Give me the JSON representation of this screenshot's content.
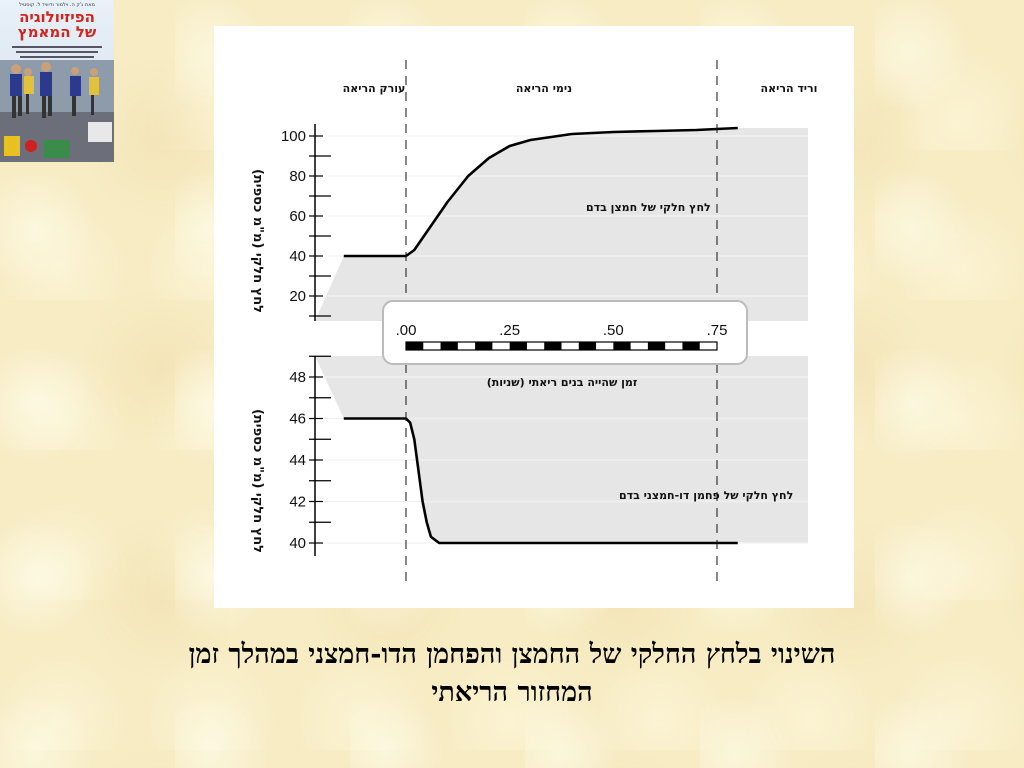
{
  "book_cover": {
    "author": "מאת ג'ק ה. וילמור ודיוויד ל. קוסטיל",
    "title_line1": "הפיזיולוגיה",
    "title_line2": "של המאמץ"
  },
  "caption": {
    "line1": "השינוי בלחץ החלקי של החמצן והפחמן הדו-חמצני במהלך זמן",
    "line2": "המחזור הריאתי"
  },
  "colors": {
    "fill": "#e6e6e6",
    "curve": "#000000",
    "panel": "#ffffff",
    "caption": "#000000"
  },
  "chart_data": [
    {
      "type": "line",
      "regions": [
        "עורק הריאה",
        "נימי הריאה",
        "וריד הריאה"
      ],
      "ylabel": "לחץ חלקי (מ\"מ כספית)",
      "yticks": [
        20,
        40,
        60,
        80,
        100
      ],
      "ylim": [
        10,
        110
      ],
      "series": [
        {
          "name": "לחץ חלקי של חמצן בדם",
          "x": [
            -0.15,
            0.0,
            0.02,
            0.05,
            0.1,
            0.15,
            0.2,
            0.25,
            0.3,
            0.4,
            0.5,
            0.6,
            0.7,
            0.75,
            0.8
          ],
          "y": [
            40,
            40,
            43,
            52,
            67,
            80,
            89,
            95,
            98,
            101,
            102,
            102.5,
            103,
            103.5,
            104
          ]
        }
      ],
      "grid": true
    },
    {
      "type": "line",
      "ylabel": "לחץ חלקי (מ\"מ כספית)",
      "yticks": [
        40,
        42,
        44,
        46,
        48
      ],
      "ylim": [
        39.5,
        48.8
      ],
      "series": [
        {
          "name": "לחץ חלקי של פחמן דו-חמצני בדם",
          "x": [
            -0.15,
            0.0,
            0.01,
            0.02,
            0.03,
            0.04,
            0.05,
            0.06,
            0.08,
            0.15,
            0.3,
            0.5,
            0.75,
            0.8
          ],
          "y": [
            46,
            46,
            45.8,
            45,
            43.5,
            42,
            41,
            40.3,
            40,
            40,
            40,
            40,
            40,
            40
          ]
        }
      ],
      "grid": true
    }
  ],
  "time_axis": {
    "ticks": [
      ".00",
      ".25",
      ".50",
      ".75"
    ],
    "values": [
      0,
      0.25,
      0.5,
      0.75
    ],
    "label": "זמן שהייה בנים ריאתי (שניות)"
  }
}
